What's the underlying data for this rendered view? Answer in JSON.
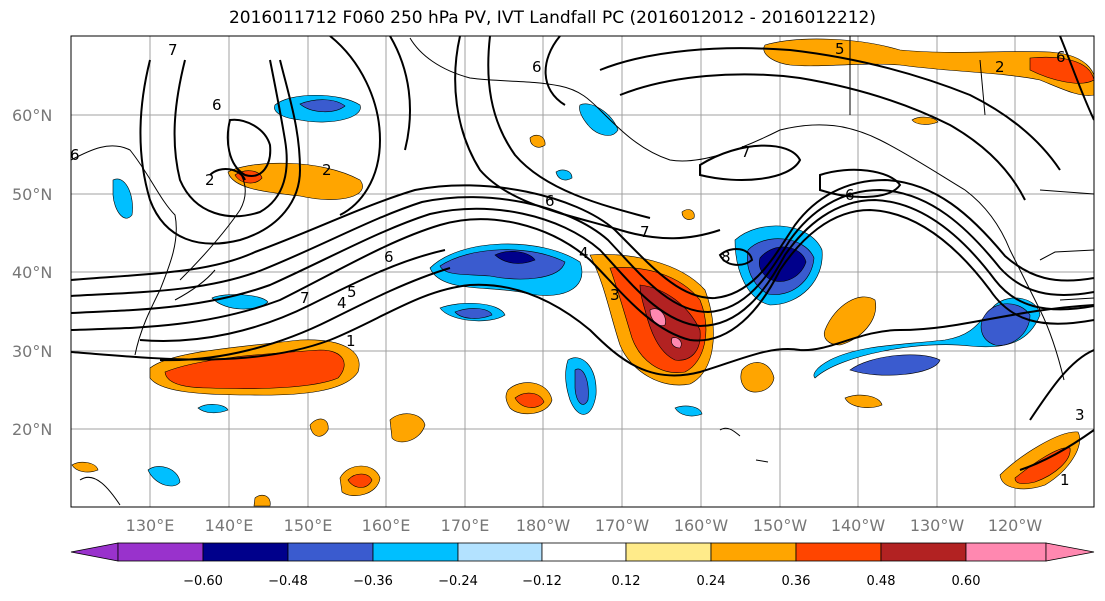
{
  "title": "2016011712 F060 250 hPa PV, IVT Landfall PC (2016012012 - 2016012212)",
  "axes": {
    "lat_labels": [
      "60°N",
      "50°N",
      "40°N",
      "30°N",
      "20°N"
    ],
    "lon_labels": [
      "130°E",
      "140°E",
      "150°E",
      "160°E",
      "170°E",
      "180°W",
      "170°W",
      "160°W",
      "150°W",
      "140°W",
      "130°W",
      "120°W"
    ]
  },
  "contour_labels": [
    "7",
    "6",
    "2",
    "2",
    "6",
    "5",
    "4",
    "7",
    "1",
    "6",
    "4",
    "3",
    "6",
    "7",
    "8",
    "6",
    "7",
    "5",
    "6",
    "2",
    "1",
    "3",
    "6"
  ],
  "colorbar": {
    "colors": [
      "#9932cc",
      "#00008b",
      "#3a5bcf",
      "#00bfff",
      "#b3e2ff",
      "#ffffff",
      "#ffeb8a",
      "#ffa500",
      "#ff4500",
      "#b22222",
      "#ff88b0"
    ],
    "tick_labels": [
      "−0.60",
      "−0.48",
      "−0.36",
      "−0.24",
      "−0.12",
      "0.12",
      "0.24",
      "0.36",
      "0.48",
      "0.60"
    ]
  },
  "colors": {
    "neg_strong": "#00008b",
    "neg_mid": "#3a5bcf",
    "neg": "#00bfff",
    "neg_light": "#b3e2ff",
    "pos_light": "#ffeb8a",
    "pos": "#ffa500",
    "pos_mid": "#ff4500",
    "pos_strong": "#b22222",
    "pos_max": "#ff88b0"
  }
}
